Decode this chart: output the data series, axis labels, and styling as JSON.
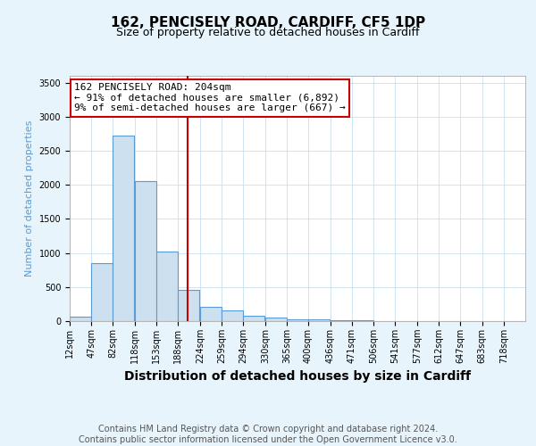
{
  "title": "162, PENCISELY ROAD, CARDIFF, CF5 1DP",
  "subtitle": "Size of property relative to detached houses in Cardiff",
  "xlabel": "Distribution of detached houses by size in Cardiff",
  "ylabel": "Number of detached properties",
  "bin_labels": [
    "12sqm",
    "47sqm",
    "82sqm",
    "118sqm",
    "153sqm",
    "188sqm",
    "224sqm",
    "259sqm",
    "294sqm",
    "330sqm",
    "365sqm",
    "400sqm",
    "436sqm",
    "471sqm",
    "506sqm",
    "541sqm",
    "577sqm",
    "612sqm",
    "647sqm",
    "683sqm",
    "718sqm"
  ],
  "bin_edges": [
    12,
    47,
    82,
    118,
    153,
    188,
    224,
    259,
    294,
    330,
    365,
    400,
    436,
    471,
    506,
    541,
    577,
    612,
    647,
    683,
    718
  ],
  "bar_heights": [
    60,
    850,
    2720,
    2060,
    1020,
    460,
    210,
    155,
    75,
    50,
    30,
    20,
    15,
    10,
    5,
    3,
    2,
    2,
    1,
    1,
    1
  ],
  "bar_color": "#cce0f0",
  "bar_edge_color": "#5b9bd5",
  "property_size": 204,
  "red_line_color": "#cc0000",
  "annotation_line1": "162 PENCISELY ROAD: 204sqm",
  "annotation_line2": "← 91% of detached houses are smaller (6,892)",
  "annotation_line3": "9% of semi-detached houses are larger (667) →",
  "annotation_box_color": "#ffffff",
  "annotation_box_edge": "#cc0000",
  "ylim": [
    0,
    3600
  ],
  "yticks": [
    0,
    500,
    1000,
    1500,
    2000,
    2500,
    3000,
    3500
  ],
  "footer_text": "Contains HM Land Registry data © Crown copyright and database right 2024.\nContains public sector information licensed under the Open Government Licence v3.0.",
  "bg_color": "#e8f4fb",
  "plot_bg_color": "#ffffff",
  "title_fontsize": 11,
  "subtitle_fontsize": 9,
  "xlabel_fontsize": 10,
  "ylabel_fontsize": 8,
  "tick_fontsize": 7,
  "annotation_fontsize": 8,
  "footer_fontsize": 7
}
